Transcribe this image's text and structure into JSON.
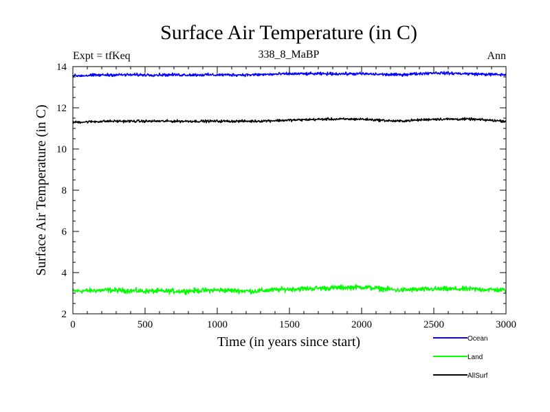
{
  "chart_data": {
    "type": "line",
    "title": "Surface Air Temperature (in C)",
    "subtitle": "338_8_MaBP",
    "experiment_label": "Expt = tfKeq",
    "period_label": "Ann",
    "xlabel": "Time (in years since start)",
    "ylabel": "Surface Air Temperature (in C)",
    "xlim": [
      0,
      3000
    ],
    "ylim": [
      2,
      14
    ],
    "x_ticks": [
      0,
      500,
      1000,
      1500,
      2000,
      2500,
      3000
    ],
    "y_ticks": [
      2,
      4,
      6,
      8,
      10,
      12,
      14
    ],
    "grid": false,
    "legend_position": "bottom-right, below plot",
    "series": [
      {
        "name": "Ocean",
        "color": "#0000ff",
        "x": [
          0,
          250,
          500,
          750,
          1000,
          1250,
          1500,
          1750,
          2000,
          2250,
          2500,
          2750,
          3000
        ],
        "values": [
          13.55,
          13.6,
          13.6,
          13.6,
          13.6,
          13.6,
          13.65,
          13.65,
          13.65,
          13.6,
          13.7,
          13.65,
          13.6
        ]
      },
      {
        "name": "Land",
        "color": "#00ff00",
        "x": [
          0,
          250,
          500,
          750,
          1000,
          1250,
          1500,
          1750,
          2000,
          2250,
          2500,
          2750,
          3000
        ],
        "values": [
          3.1,
          3.15,
          3.1,
          3.1,
          3.15,
          3.1,
          3.2,
          3.25,
          3.3,
          3.15,
          3.2,
          3.2,
          3.15
        ]
      },
      {
        "name": "AllSurf",
        "color": "#000000",
        "x": [
          0,
          250,
          500,
          750,
          1000,
          1250,
          1500,
          1750,
          2000,
          2250,
          2500,
          2750,
          3000
        ],
        "values": [
          11.3,
          11.35,
          11.35,
          11.35,
          11.35,
          11.35,
          11.4,
          11.45,
          11.45,
          11.35,
          11.45,
          11.45,
          11.35
        ]
      }
    ]
  }
}
